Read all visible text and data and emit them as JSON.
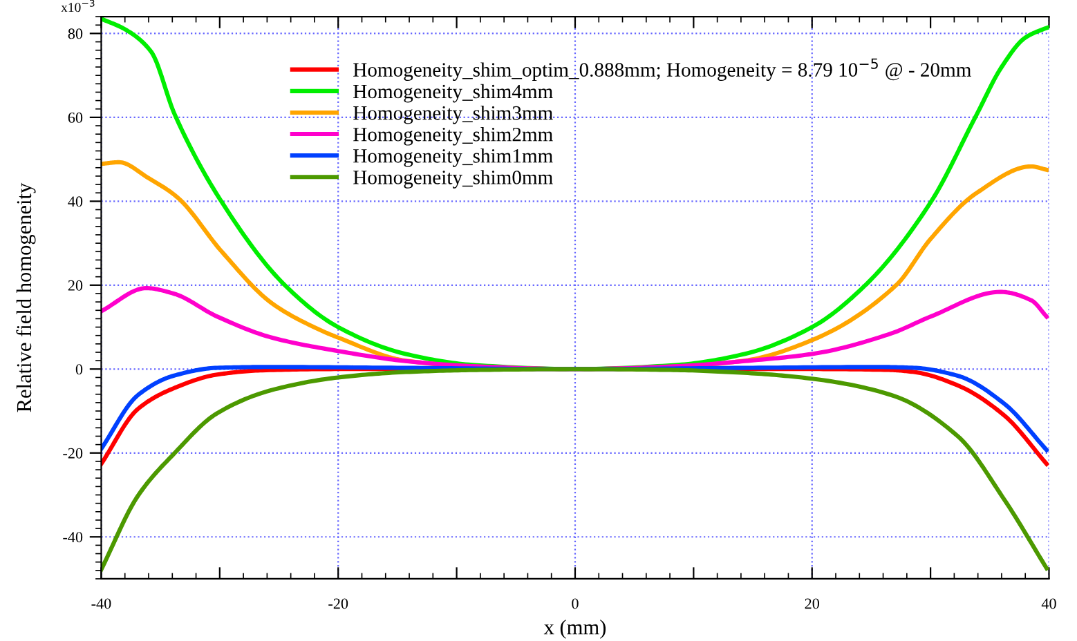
{
  "chart_data": {
    "type": "line",
    "xlabel": "x (mm)",
    "ylabel": "Relative field homogeneity",
    "xlim": [
      -40,
      40
    ],
    "ylim": [
      -50,
      84
    ],
    "xticks": [
      -40,
      {
        "value": -30,
        "label": null
      },
      -20,
      {
        "value": -10,
        "label": null
      },
      0,
      {
        "value": 10,
        "label": null
      },
      20,
      {
        "value": 30,
        "label": null
      },
      40
    ],
    "yticks": [
      -40,
      -20,
      0,
      20,
      40,
      60,
      80
    ],
    "annotations": [
      "x10$^{−3}$"
    ],
    "grid": true,
    "legend": "top",
    "line_style": "solid",
    "marker": "none",
    "series": [
      {
        "name": "Homogeneity_shim_optim_0.888mm; Homogeneity = 8.79 10$^{−5}$ @ - 20mm",
        "color": "#ff0000",
        "x": [
          -40,
          -36.9,
          -33.9,
          -30.2,
          -26.4,
          -20,
          -10,
          0,
          10,
          20,
          26.4,
          28.6,
          32.3,
          36.2,
          39.8
        ],
        "values": [
          -22.6,
          -9.5,
          -4.6,
          -1.3,
          -0.3,
          0,
          0,
          0,
          0,
          0,
          -0.2,
          -0.7,
          -3.9,
          -11,
          -22.6
        ]
      },
      {
        "name": "Homogeneity_shim4mm",
        "color": "#00ee00",
        "x": [
          -40,
          -38,
          -35.8,
          -33.8,
          -29.8,
          -24.5,
          -20,
          -14.3,
          -8.7,
          0,
          8.7,
          14.3,
          20,
          24.5,
          30,
          33.9,
          36,
          38,
          39.5,
          40
        ],
        "values": [
          83.5,
          81,
          75.7,
          60.7,
          39.7,
          20,
          10,
          3.6,
          1,
          0,
          1,
          3.6,
          10,
          20,
          39.7,
          60.7,
          72,
          79,
          81,
          81.5
        ]
      },
      {
        "name": "Homogeneity_shim3mm",
        "color": "#ffa500",
        "x": [
          -40,
          -38.5,
          -36,
          -33.6,
          -29.8,
          -25.6,
          -21.9,
          -20,
          -14.3,
          -8,
          0,
          8,
          14.3,
          20,
          27.1,
          30,
          33.9,
          38.5,
          39.8
        ],
        "values": [
          48.9,
          49.3,
          45.5,
          41,
          27.9,
          15.7,
          9.8,
          7.5,
          2,
          0.5,
          0,
          0.5,
          2,
          6.9,
          20,
          31,
          42,
          48.3,
          47.5
        ]
      },
      {
        "name": "Homogeneity_shim2mm",
        "color": "#ff00cc",
        "x": [
          -40,
          -36.2,
          -33.9,
          -30.2,
          -25.6,
          -20,
          -14.3,
          -8.7,
          0,
          8.7,
          14.3,
          20,
          26.7,
          30,
          35.9,
          38.5,
          39.8
        ],
        "values": [
          13.8,
          19.3,
          18,
          12.5,
          7.5,
          4.3,
          1.9,
          0.7,
          0,
          0.7,
          1.9,
          3.6,
          8.5,
          12.5,
          18.4,
          16.4,
          12.5
        ]
      },
      {
        "name": "Homogeneity_shim1mm",
        "color": "#0040ff",
        "x": [
          -40,
          -36.9,
          -33.9,
          -30.2,
          -25.6,
          -15,
          0,
          15,
          25.6,
          28.6,
          32.3,
          36.2,
          39.8
        ],
        "values": [
          -19,
          -6.2,
          -1.6,
          0.3,
          0.5,
          0.3,
          0,
          0.3,
          0.5,
          0.3,
          -1.6,
          -8.2,
          -19.3
        ]
      },
      {
        "name": "Homogeneity_shim0mm",
        "color": "#4c9900",
        "x": [
          -40,
          -36.9,
          -33.9,
          -30.2,
          -25.6,
          -20,
          -14.3,
          -8,
          0,
          8,
          14.3,
          20,
          26.7,
          32.3,
          36.2,
          39.8
        ],
        "values": [
          -47.8,
          -30.2,
          -20.3,
          -10.5,
          -5,
          -2,
          -0.7,
          -0.2,
          0,
          -0.2,
          -0.9,
          -2.3,
          -6.2,
          -16,
          -31,
          -47.5
        ]
      }
    ]
  }
}
